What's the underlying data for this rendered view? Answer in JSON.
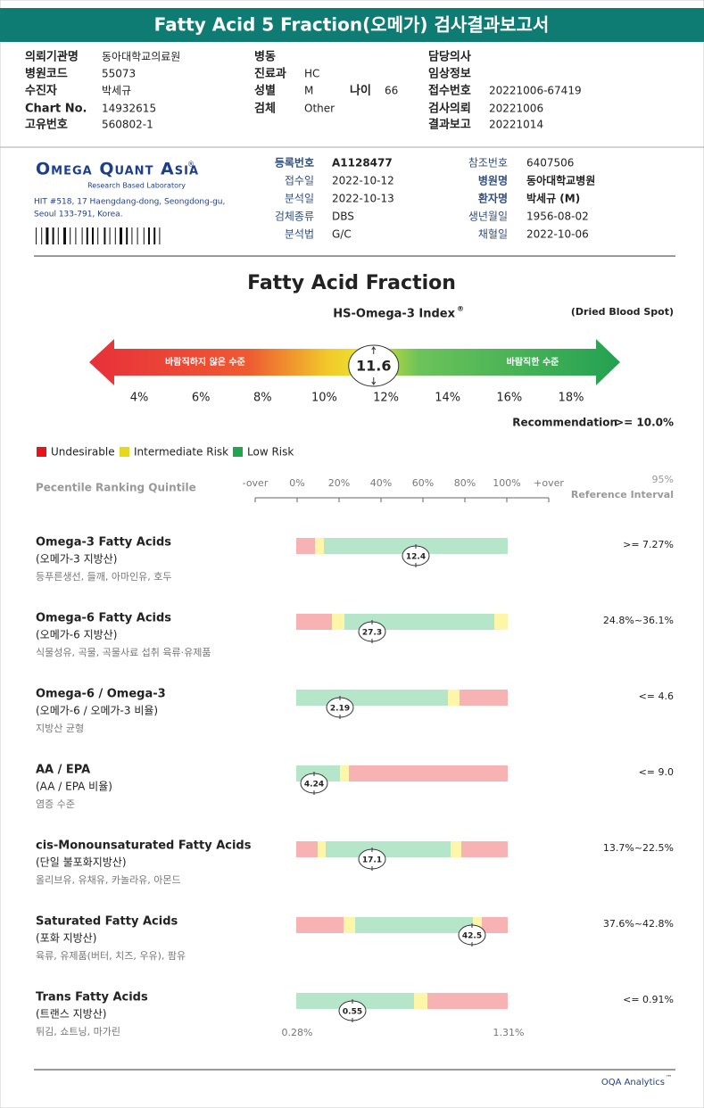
{
  "header": {
    "title": "Fatty Acid 5 Fraction(오메가) 검사결과보고서"
  },
  "info": [
    {
      "label": "의뢰기관명",
      "value": "동아대학교의료원"
    },
    {
      "label": "병동"
    },
    {
      "label": "담당의사"
    },
    {
      "label": "병원코드",
      "value": "55073"
    },
    {
      "label": "진료과",
      "value": "HC"
    },
    {
      "label": "임상정보"
    },
    {
      "label": "수진자",
      "value": "박세규"
    },
    {
      "label": "성별",
      "value": "M"
    },
    {
      "label": "나이",
      "value": "66"
    },
    {
      "label": "접수번호",
      "value": "20221006-67419"
    },
    {
      "label": "Chart No.",
      "value": "14932615"
    },
    {
      "label": "검체",
      "value": "Other"
    },
    {
      "label": "검사의뢰",
      "value": "20221006"
    },
    {
      "label": "고유번호",
      "value": "560802-1"
    },
    {
      "label": "결과보고",
      "value": "20221014"
    }
  ],
  "lab": {
    "logo": "Omega Quant Asia",
    "logo_mark": "®",
    "tagline": "Research Based Laboratory",
    "address": [
      "HIT #518, 17 Haengdang-dong, Seongdong-gu,",
      "Seoul 133-791, Korea."
    ],
    "fields": [
      {
        "label": "등록번호",
        "value": "A1128477"
      },
      {
        "label": "접수일",
        "value": "2022-10-12"
      },
      {
        "label": "분석일",
        "value": "2022-10-13"
      },
      {
        "label": "검체종류",
        "value": "DBS"
      },
      {
        "label": "분석법",
        "value": "G/C"
      },
      {
        "label": "참조번호",
        "value": "6407506"
      },
      {
        "label": "병원명",
        "value": "동아대학교병원"
      },
      {
        "label": "환자명",
        "value": "박세규 (M)"
      },
      {
        "label": "생년월일",
        "value": "1956-08-02"
      },
      {
        "label": "채혈일",
        "value": "2022-10-06"
      }
    ]
  },
  "result": {
    "title": "Fatty Acid Fraction",
    "index_title": "HS-Omega-3 Index",
    "index_mark": "®",
    "specimen": "(Dried Blood Spot)",
    "low_label": "바람직하지 않은 수준",
    "high_label": "바람직한 수준",
    "value": 11.6,
    "scale": [
      {
        "value": 4,
        "label": "4%"
      },
      {
        "value": 6,
        "label": "6%"
      },
      {
        "value": 8,
        "label": "8%"
      },
      {
        "value": 10,
        "label": "10%"
      },
      {
        "value": 12,
        "label": "12%"
      },
      {
        "value": 14,
        "label": "14%"
      },
      {
        "value": 16,
        "label": "16%"
      },
      {
        "value": 18,
        "label": "18%"
      }
    ],
    "recommendation_label": "Recommendation",
    "recommendation": ">= 10.0%"
  },
  "legend": [
    {
      "label": "Undesirable",
      "color": "#e8141a"
    },
    {
      "label": "Intermediate Risk",
      "color": "#e6d91a"
    },
    {
      "label": "Low Risk",
      "color": "#1fa64f"
    }
  ],
  "ranking": {
    "title": "Pecentile Ranking Quintile",
    "axis": [
      "-over",
      "0%",
      "20%",
      "40%",
      "60%",
      "80%",
      "100%",
      "+over"
    ],
    "ref_title": [
      "95%",
      "Reference Interval"
    ],
    "items": [
      {
        "name": "Omega-3 Fatty Acids",
        "name_ko": "(오메가-3 지방산)",
        "foods": "등푸른생선, 들깨, 아마인유, 호두",
        "value": 12.4,
        "reference": ">= 7.27%"
      },
      {
        "name": "Omega-6 Fatty Acids",
        "name_ko": "(오메가-6 지방산)",
        "foods": "식물성유, 곡물, 곡물사료 섭취 육류·유제품",
        "value": 27.3,
        "reference": "24.8%~36.1%"
      },
      {
        "name": "Omega-6 / Omega-3",
        "name_ko": "(오메가-6 / 오메가-3 비율)",
        "foods": "지방산 균형",
        "value": 2.19,
        "reference": "<= 4.6"
      },
      {
        "name": "AA / EPA",
        "name_ko": "(AA / EPA 비율)",
        "foods": "염증 수준",
        "value": 4.24,
        "reference": "<= 9.0"
      },
      {
        "name": "cis-Monounsaturated Fatty Acids",
        "name_ko": "(단일 불포화지방산)",
        "foods": "올리브유, 유채유, 카놀라유, 아몬드",
        "value": 17.1,
        "reference": "13.7%~22.5%"
      },
      {
        "name": "Saturated Fatty Acids",
        "name_ko": "(포화 지방산)",
        "foods": "육류, 유제품(버터, 치즈, 우유), 팜유",
        "value": 42.5,
        "reference": "37.6%~42.8%"
      },
      {
        "name": "Trans Fatty Acids",
        "name_ko": "(트랜스 지방산)",
        "foods": "튀김, 쇼트닝, 마가린",
        "value": 0.55,
        "reference": "<= 0.91%"
      }
    ],
    "range_labels": [
      "0.28%",
      "1.31%"
    ]
  },
  "footer": {
    "text": "OQA Analytics",
    "mark": "™"
  }
}
